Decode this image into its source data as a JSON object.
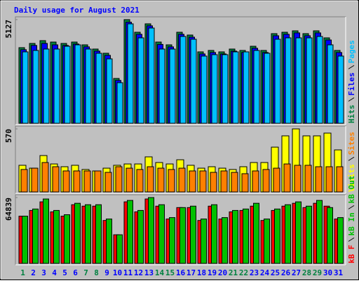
{
  "chart_data": [
    {
      "type": "bar",
      "title": "Daily usage for August 2021",
      "ylim": [
        0,
        5127
      ],
      "yticks": [
        5127
      ],
      "series": [
        {
          "name": "Hits",
          "color": "#008040",
          "values": [
            3741,
            3949,
            4088,
            4018,
            3949,
            4018,
            3880,
            3672,
            3464,
            2217,
            5127,
            4503,
            4919,
            4018,
            3880,
            4503,
            4365,
            3533,
            3603,
            3533,
            3672,
            3603,
            3810,
            3603,
            4434,
            4503,
            4573,
            4434,
            4573,
            4226,
            3603
          ]
        },
        {
          "name": "Files",
          "color": "#0000ff",
          "values": [
            3640,
            3850,
            3950,
            3880,
            3850,
            3920,
            3780,
            3570,
            3360,
            2120,
            5000,
            4400,
            4820,
            3900,
            3780,
            4400,
            4260,
            3430,
            3500,
            3430,
            3570,
            3500,
            3710,
            3500,
            4330,
            4400,
            4470,
            4330,
            4470,
            4120,
            3500
          ]
        },
        {
          "name": "Pages",
          "color": "#00c0ff",
          "values": [
            3533,
            3603,
            3672,
            3672,
            3810,
            3880,
            3672,
            3464,
            3187,
            2009,
            4919,
            4226,
            4711,
            3672,
            3672,
            4295,
            4157,
            3325,
            3395,
            3395,
            3533,
            3533,
            3603,
            3464,
            4157,
            4226,
            4226,
            4226,
            4295,
            3880,
            3325
          ]
        }
      ]
    },
    {
      "type": "bar",
      "ylim": [
        0,
        570
      ],
      "yticks": [
        570
      ],
      "series": [
        {
          "name": "Visits",
          "color": "#ffff00",
          "values": [
            241,
            215,
            329,
            253,
            228,
            241,
            203,
            190,
            215,
            241,
            253,
            253,
            317,
            266,
            253,
            291,
            241,
            215,
            228,
            215,
            203,
            228,
            266,
            266,
            405,
            507,
            570,
            507,
            507,
            532,
            380
          ]
        },
        {
          "name": "Sites",
          "color": "#ff8000",
          "values": [
            203,
            215,
            266,
            228,
            190,
            190,
            190,
            190,
            177,
            228,
            215,
            203,
            228,
            215,
            203,
            215,
            190,
            190,
            177,
            190,
            177,
            165,
            190,
            203,
            215,
            253,
            241,
            241,
            228,
            228,
            228
          ]
        }
      ]
    },
    {
      "type": "bar",
      "ylim": [
        0,
        64839
      ],
      "yticks": [
        64839
      ],
      "categories": [
        "1",
        "2",
        "3",
        "4",
        "5",
        "6",
        "7",
        "8",
        "9",
        "10",
        "11",
        "12",
        "13",
        "14",
        "15",
        "16",
        "17",
        "18",
        "19",
        "20",
        "21",
        "22",
        "23",
        "24",
        "25",
        "26",
        "27",
        "28",
        "29",
        "30",
        "31"
      ],
      "category_colors": [
        "#008040",
        "#0000ff",
        "#0000ff",
        "#0000ff",
        "#0000ff",
        "#0000ff",
        "#008040",
        "#008040",
        "#0000ff",
        "#0000ff",
        "#0000ff",
        "#0000ff",
        "#0000ff",
        "#008040",
        "#008040",
        "#0000ff",
        "#0000ff",
        "#0000ff",
        "#0000ff",
        "#0000ff",
        "#008040",
        "#008040",
        "#0000ff",
        "#0000ff",
        "#0000ff",
        "#0000ff",
        "#0000ff",
        "#008040",
        "#008040",
        "#0000ff",
        "#0000ff"
      ],
      "series": [
        {
          "name": "kB F",
          "color": "#ff0000",
          "values": [
            46520,
            52150,
            60610,
            50750,
            46520,
            57790,
            56380,
            56380,
            42290,
            28190,
            60610,
            50750,
            63430,
            56380,
            43700,
            54970,
            54970,
            42290,
            56380,
            43700,
            50750,
            52150,
            56380,
            42290,
            52150,
            56380,
            59200,
            54970,
            59200,
            56380,
            43700
          ]
        },
        {
          "name": "kB In",
          "color": "#00c000"
        },
        {
          "name": "kB Out",
          "color": "#00c000",
          "values": [
            46520,
            53560,
            63430,
            52150,
            47930,
            59200,
            57790,
            57790,
            43700,
            28190,
            62020,
            52150,
            64839,
            57790,
            45110,
            54970,
            56380,
            43700,
            57790,
            45110,
            52150,
            53560,
            59200,
            43700,
            53560,
            57790,
            60610,
            56380,
            62020,
            54970,
            45110
          ]
        }
      ]
    }
  ]
}
